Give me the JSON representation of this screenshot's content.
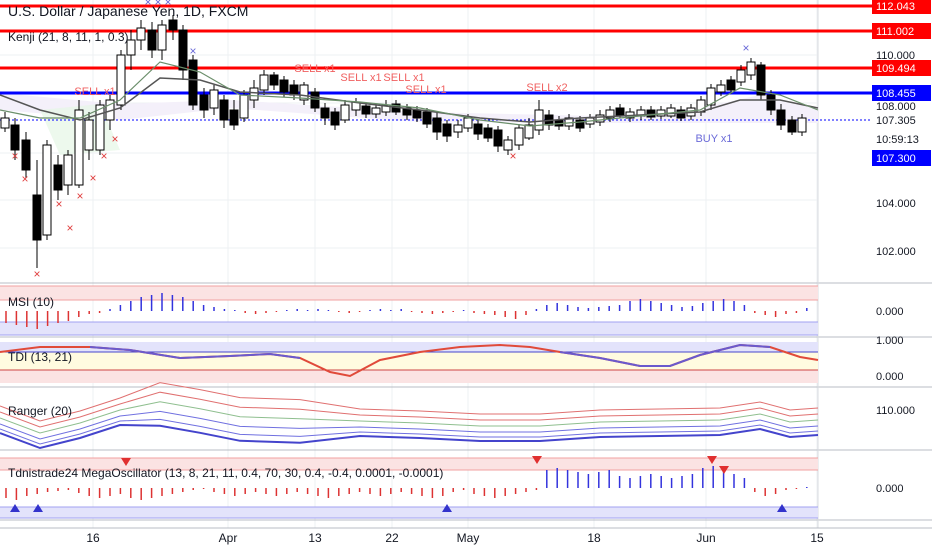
{
  "title": "U.S. Dollar / Japanese Yen, 1D, FXCM",
  "panes": {
    "kenji": "Kenji (21, 8, 11, 1, 0.3)",
    "msi": "MSI (10)",
    "tdi": "TDI (13, 21)",
    "ranger": "Ranger (20)",
    "mega": "Tdnistrade24 MegaOscillator (13, 8, 21, 11, 0.4, 70, 30, 0.4, -0.4, 0.0001, -0.0001)"
  },
  "colors": {
    "red_line": "#ff0000",
    "blue_line": "#0000ff",
    "candle": "#000000",
    "sell_text": "#f06060",
    "buy_text": "#6a6ad8",
    "pink_fill": "#fbe3e3",
    "blue_fill": "#e3e3fb",
    "yellow_fill": "#fffbe0"
  },
  "horizontal_levels": [
    {
      "value": "112.043",
      "color": "#ff0000"
    },
    {
      "value": "111.002",
      "color": "#ff0000"
    },
    {
      "value": "109.494",
      "color": "#ff0000"
    },
    {
      "value": "108.455",
      "color": "#0000ff"
    },
    {
      "value": "107.305",
      "color": "#ffffff"
    },
    {
      "value": "10:59:13",
      "color": "#ffffff"
    },
    {
      "value": "107.300",
      "color": "#0000ff"
    }
  ],
  "price_ticks": [
    "110.000",
    "108.000",
    "104.000",
    "102.000"
  ],
  "osc_ticks": {
    "msi": [
      "0.000"
    ],
    "tdi": [
      "1.000",
      "0.000"
    ],
    "ranger": [
      "110.000"
    ],
    "mega": [
      "0.000"
    ]
  },
  "signals": [
    {
      "text": "SELL x1",
      "type": "sell"
    },
    {
      "text": "SELL x1",
      "type": "sell"
    },
    {
      "text": "SELL x1",
      "type": "sell"
    },
    {
      "text": "SELL x1",
      "type": "sell"
    },
    {
      "text": "SELL x1",
      "type": "sell"
    },
    {
      "text": "SELL x2",
      "type": "sell"
    },
    {
      "text": "BUY x1",
      "type": "buy"
    }
  ],
  "dates": [
    "16",
    "Apr",
    "13",
    "22",
    "May",
    "18",
    "Jun",
    "15"
  ]
}
